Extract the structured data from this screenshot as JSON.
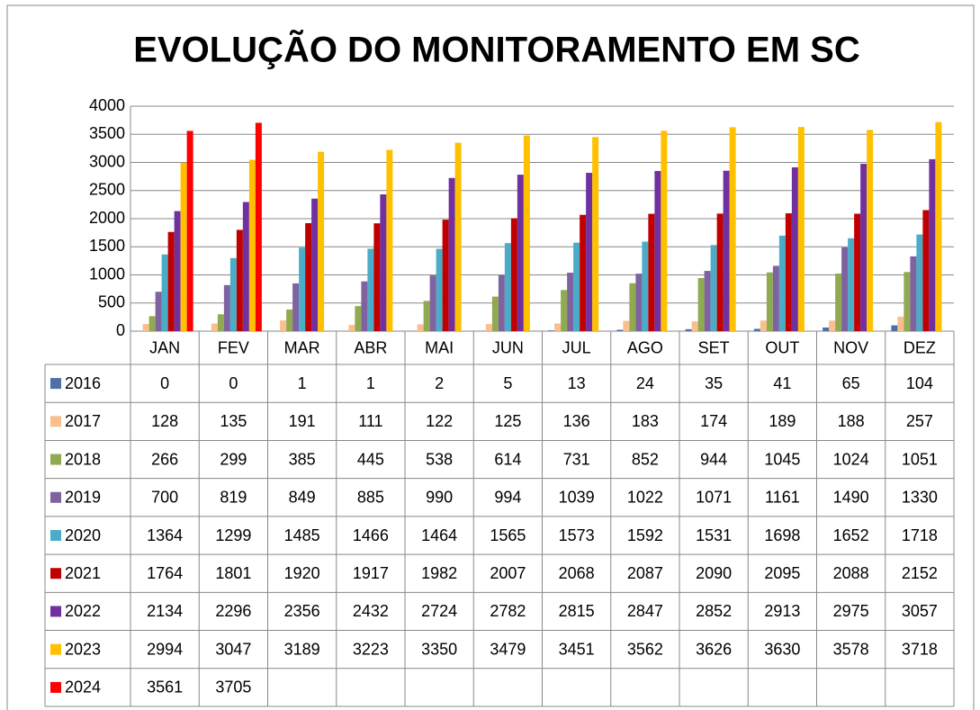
{
  "chart_data": {
    "type": "bar",
    "title": "EVOLUÇÃO DO MONITORAMENTO EM SC",
    "categories": [
      "JAN",
      "FEV",
      "MAR",
      "ABR",
      "MAI",
      "JUN",
      "JUL",
      "AGO",
      "SET",
      "OUT",
      "NOV",
      "DEZ"
    ],
    "series": [
      {
        "name": "2016",
        "color": "#4f6fa8",
        "values": [
          0,
          0,
          1,
          1,
          2,
          5,
          13,
          24,
          35,
          41,
          65,
          104
        ]
      },
      {
        "name": "2017",
        "color": "#f9bf8f",
        "values": [
          128,
          135,
          191,
          111,
          122,
          125,
          136,
          183,
          174,
          189,
          188,
          257
        ]
      },
      {
        "name": "2018",
        "color": "#8faa50",
        "values": [
          266,
          299,
          385,
          445,
          538,
          614,
          731,
          852,
          944,
          1045,
          1024,
          1051
        ]
      },
      {
        "name": "2019",
        "color": "#7f62a0",
        "values": [
          700,
          819,
          849,
          885,
          990,
          994,
          1039,
          1022,
          1071,
          1161,
          1490,
          1330
        ]
      },
      {
        "name": "2020",
        "color": "#4aacc6",
        "values": [
          1364,
          1299,
          1485,
          1466,
          1464,
          1565,
          1573,
          1592,
          1531,
          1698,
          1652,
          1718
        ]
      },
      {
        "name": "2021",
        "color": "#c00000",
        "values": [
          1764,
          1801,
          1920,
          1917,
          1982,
          2007,
          2068,
          2087,
          2090,
          2095,
          2088,
          2152
        ]
      },
      {
        "name": "2022",
        "color": "#7030a0",
        "values": [
          2134,
          2296,
          2356,
          2432,
          2724,
          2782,
          2815,
          2847,
          2852,
          2913,
          2975,
          3057
        ]
      },
      {
        "name": "2023",
        "color": "#ffc000",
        "values": [
          2994,
          3047,
          3189,
          3223,
          3350,
          3479,
          3451,
          3562,
          3626,
          3630,
          3578,
          3718
        ]
      },
      {
        "name": "2024",
        "color": "#ff0000",
        "values": [
          3561,
          3705,
          null,
          null,
          null,
          null,
          null,
          null,
          null,
          null,
          null,
          null
        ]
      }
    ],
    "ylim": [
      0,
      4000
    ],
    "yticks": [
      0,
      500,
      1000,
      1500,
      2000,
      2500,
      3000,
      3500,
      4000
    ],
    "grid": true
  }
}
